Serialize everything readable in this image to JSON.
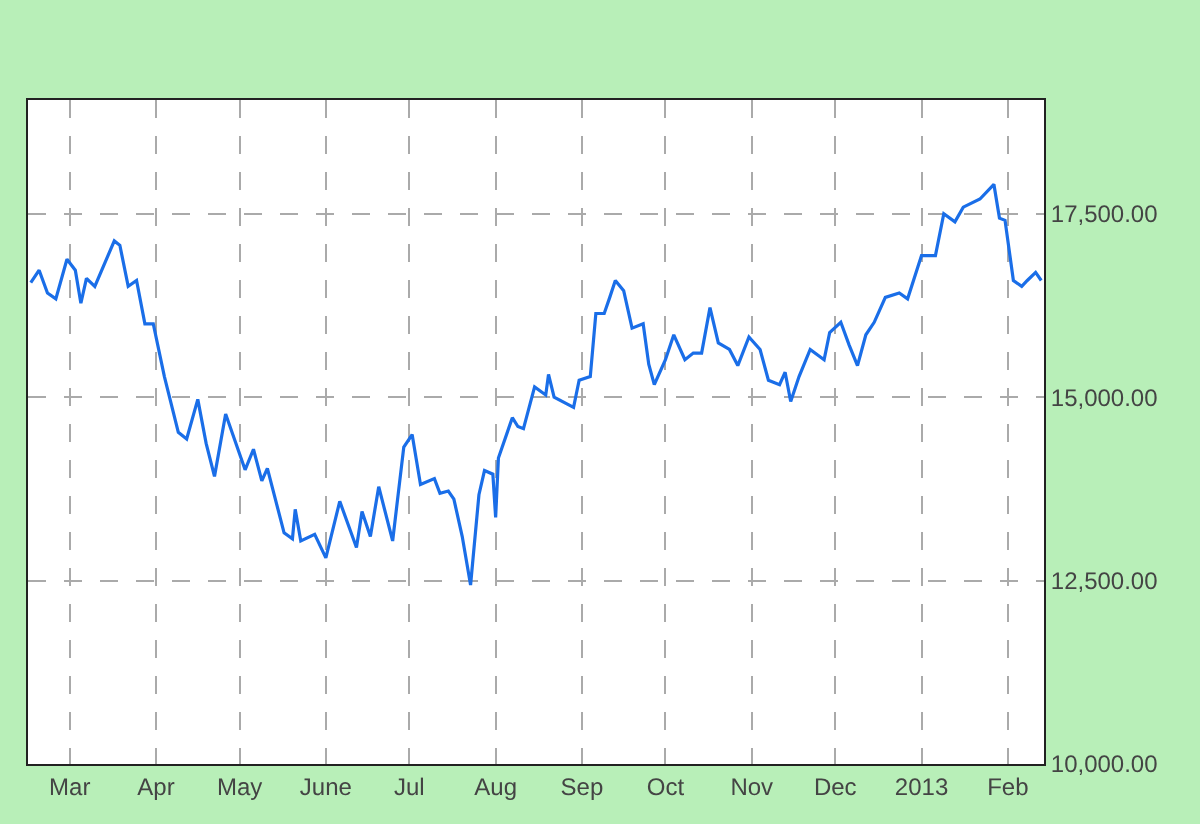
{
  "chart_data": {
    "type": "line",
    "x": [
      "2012-02-16",
      "2012-02-19",
      "2012-02-22",
      "2012-02-25",
      "2012-02-29",
      "2012-03-03",
      "2012-03-05",
      "2012-03-07",
      "2012-03-10",
      "2012-03-17",
      "2012-03-19",
      "2012-03-22",
      "2012-03-25",
      "2012-03-28",
      "2012-03-31",
      "2012-04-04",
      "2012-04-09",
      "2012-04-12",
      "2012-04-16",
      "2012-04-19",
      "2012-04-22",
      "2012-04-26",
      "2012-05-03",
      "2012-05-06",
      "2012-05-09",
      "2012-05-11",
      "2012-05-17",
      "2012-05-20",
      "2012-05-21",
      "2012-05-23",
      "2012-05-28",
      "2012-06-01",
      "2012-06-06",
      "2012-06-12",
      "2012-06-14",
      "2012-06-17",
      "2012-06-20",
      "2012-06-25",
      "2012-06-29",
      "2012-07-02",
      "2012-07-05",
      "2012-07-10",
      "2012-07-12",
      "2012-07-15",
      "2012-07-17",
      "2012-07-20",
      "2012-07-23",
      "2012-07-26",
      "2012-07-28",
      "2012-07-31",
      "2012-08-01",
      "2012-08-02",
      "2012-08-07",
      "2012-08-09",
      "2012-08-11",
      "2012-08-15",
      "2012-08-19",
      "2012-08-20",
      "2012-08-22",
      "2012-08-29",
      "2012-08-31",
      "2012-09-04",
      "2012-09-06",
      "2012-09-09",
      "2012-09-11",
      "2012-09-13",
      "2012-09-16",
      "2012-09-19",
      "2012-09-23",
      "2012-09-25",
      "2012-09-27",
      "2012-10-01",
      "2012-10-04",
      "2012-10-08",
      "2012-10-11",
      "2012-10-14",
      "2012-10-17",
      "2012-10-20",
      "2012-10-24",
      "2012-10-27",
      "2012-10-31",
      "2012-11-04",
      "2012-11-07",
      "2012-11-11",
      "2012-11-13",
      "2012-11-15",
      "2012-11-18",
      "2012-11-22",
      "2012-11-27",
      "2012-11-29",
      "2012-12-03",
      "2012-12-06",
      "2012-12-09",
      "2012-12-12",
      "2012-12-15",
      "2012-12-19",
      "2012-12-24",
      "2012-12-27",
      "2013-01-01",
      "2013-01-06",
      "2013-01-09",
      "2013-01-13",
      "2013-01-16",
      "2013-01-22",
      "2013-01-27",
      "2013-01-29",
      "2013-01-31",
      "2013-02-03",
      "2013-02-06",
      "2013-02-08",
      "2013-02-11",
      "2013-02-13"
    ],
    "series": [
      {
        "color": "#1a6ee8",
        "values": [
          16560,
          16730,
          16420,
          16340,
          16880,
          16730,
          16280,
          16620,
          16510,
          17130,
          17070,
          16510,
          16590,
          16000,
          16000,
          15280,
          14520,
          14430,
          14970,
          14370,
          13920,
          14770,
          14010,
          14290,
          13860,
          14030,
          13150,
          13070,
          13470,
          13040,
          13130,
          12810,
          13580,
          12950,
          13440,
          13100,
          13780,
          13040,
          14320,
          14490,
          13810,
          13890,
          13690,
          13720,
          13610,
          13100,
          12440,
          13670,
          14000,
          13950,
          13360,
          14170,
          14720,
          14600,
          14570,
          15140,
          15030,
          15310,
          15000,
          14860,
          15230,
          15280,
          16140,
          16140,
          16360,
          16590,
          16450,
          15940,
          16000,
          15450,
          15170,
          15510,
          15850,
          15510,
          15600,
          15600,
          16220,
          15740,
          15650,
          15430,
          15820,
          15650,
          15230,
          15170,
          15340,
          14940,
          15280,
          15650,
          15510,
          15880,
          16020,
          15710,
          15430,
          15850,
          16020,
          16360,
          16420,
          16340,
          16930,
          16930,
          17500,
          17390,
          17590,
          17700,
          17900,
          17440,
          17410,
          16590,
          16510,
          16590,
          16700,
          16590
        ]
      }
    ],
    "xlim": [
      "2012-02-15",
      "2013-02-14"
    ],
    "xticks": [
      {
        "value": "2012-03-01",
        "label": "Mar"
      },
      {
        "value": "2012-04-01",
        "label": "Apr"
      },
      {
        "value": "2012-05-01",
        "label": "May"
      },
      {
        "value": "2012-06-01",
        "label": "June"
      },
      {
        "value": "2012-07-01",
        "label": "Jul"
      },
      {
        "value": "2012-08-01",
        "label": "Aug"
      },
      {
        "value": "2012-09-01",
        "label": "Sep"
      },
      {
        "value": "2012-10-01",
        "label": "Oct"
      },
      {
        "value": "2012-11-01",
        "label": "Nov"
      },
      {
        "value": "2012-12-01",
        "label": "Dec"
      },
      {
        "value": "2013-01-01",
        "label": "2013"
      },
      {
        "value": "2013-02-01",
        "label": "Feb"
      }
    ],
    "ylim": [
      10000,
      19050
    ],
    "yticks": [
      {
        "value": 10000,
        "label": "10,000.00"
      },
      {
        "value": 12500,
        "label": "12,500.00"
      },
      {
        "value": 15000,
        "label": "15,000.00"
      },
      {
        "value": 17500,
        "label": "17,500.00"
      }
    ],
    "grid": true,
    "line_style": "solid",
    "marker": "none"
  }
}
